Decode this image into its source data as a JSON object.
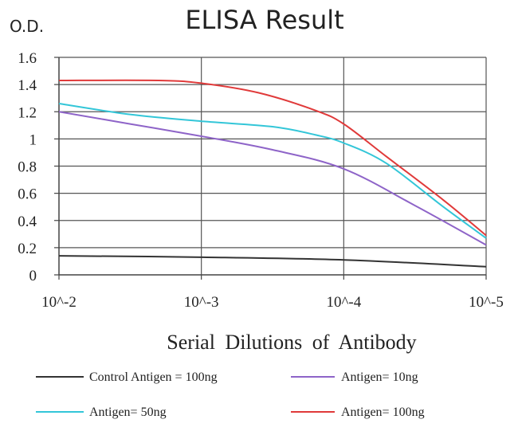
{
  "chart_data": {
    "type": "line",
    "title": "ELISA Result",
    "ylabel": "O.D.",
    "xlabel": "Serial Dilutions of Antibody",
    "x_tick_labels": [
      "10^-2",
      "10^-3",
      "10^-4",
      "10^-5"
    ],
    "x": [
      -2,
      -3,
      -4,
      -5
    ],
    "y_ticks": [
      "0",
      "0.2",
      "0.4",
      "0.6",
      "0.8",
      "1",
      "1.2",
      "1.4",
      "1.6"
    ],
    "ylim": [
      0,
      1.6
    ],
    "xlim": [
      -2,
      -5
    ],
    "grid": true,
    "legend_position": "bottom",
    "series": [
      {
        "name": "Control Antigen = 100ng",
        "color": "#333333",
        "points": [
          [
            -2,
            0.14
          ],
          [
            -3,
            0.13
          ],
          [
            -4,
            0.11
          ],
          [
            -5,
            0.06
          ]
        ]
      },
      {
        "name": "Antigen= 10ng",
        "color": "#8e64c8",
        "points": [
          [
            -2,
            1.2
          ],
          [
            -2.5,
            1.11
          ],
          [
            -3,
            1.02
          ],
          [
            -3.5,
            0.92
          ],
          [
            -4,
            0.78
          ],
          [
            -4.5,
            0.51
          ],
          [
            -5,
            0.22
          ]
        ]
      },
      {
        "name": "Antigen= 50ng",
        "color": "#33c6d8",
        "points": [
          [
            -2,
            1.26
          ],
          [
            -2.5,
            1.18
          ],
          [
            -3,
            1.13
          ],
          [
            -3.5,
            1.09
          ],
          [
            -3.8,
            1.03
          ],
          [
            -4,
            0.97
          ],
          [
            -4.3,
            0.82
          ],
          [
            -4.7,
            0.5
          ],
          [
            -5,
            0.27
          ]
        ]
      },
      {
        "name": "Antigen= 100ng",
        "color": "#e03a3a",
        "points": [
          [
            -2,
            1.43
          ],
          [
            -2.7,
            1.43
          ],
          [
            -3,
            1.41
          ],
          [
            -3.4,
            1.34
          ],
          [
            -3.8,
            1.21
          ],
          [
            -4,
            1.11
          ],
          [
            -4.3,
            0.87
          ],
          [
            -4.7,
            0.55
          ],
          [
            -5,
            0.29
          ]
        ]
      }
    ]
  }
}
